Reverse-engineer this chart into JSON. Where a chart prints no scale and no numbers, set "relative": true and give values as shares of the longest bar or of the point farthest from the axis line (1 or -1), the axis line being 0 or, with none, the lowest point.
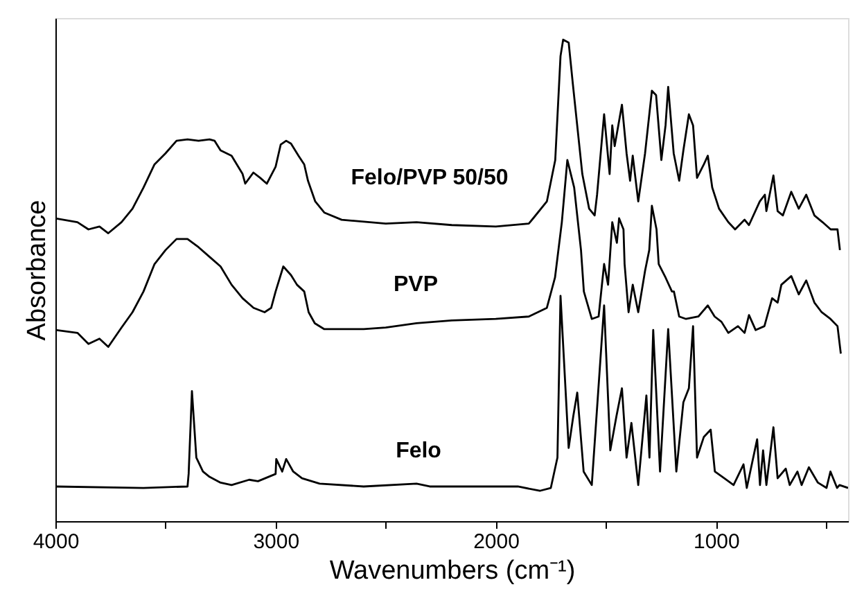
{
  "chart_data": {
    "type": "line",
    "relative": true,
    "xlabel": "Wavenumbers (cm⁻¹)",
    "ylabel": "Absorbance",
    "xlim": [
      4000,
      400
    ],
    "xticks": [
      4000,
      {
        "value": 3500,
        "label": null
      },
      3000,
      {
        "value": 2500,
        "label": null
      },
      2000,
      {
        "value": 1500,
        "label": null
      },
      1000,
      {
        "value": 500,
        "label": null
      }
    ],
    "tick_labels": "x",
    "grid": false,
    "marker": "none",
    "line_style": "solid",
    "series": [
      {
        "name": "Felo/PVP 50/50",
        "color": "#000000",
        "x": [
          4000,
          3900,
          3850,
          3800,
          3760,
          3700,
          3650,
          3600,
          3550,
          3500,
          3450,
          3400,
          3350,
          3300,
          3277,
          3250,
          3200,
          3150,
          3138,
          3101,
          3070,
          3040,
          3000,
          2977,
          2952,
          2930,
          2896,
          2870,
          2853,
          2820,
          2779,
          2700,
          2500,
          2360,
          2200,
          2000,
          1850,
          1830,
          1768,
          1730,
          1706,
          1694,
          1669,
          1650,
          1607,
          1576,
          1551,
          1540,
          1508,
          1483,
          1471,
          1460,
          1427,
          1406,
          1390,
          1378,
          1353,
          1322,
          1291,
          1272,
          1248,
          1229,
          1217,
          1192,
          1167,
          1148,
          1123,
          1104,
          1086,
          1055,
          1037,
          1017,
          986,
          944,
          913,
          870,
          850,
          801,
          778,
          771,
          739,
          720,
          696,
          658,
          624,
          590,
          553,
          516,
          479,
          448,
          437
        ],
        "values": [
          0.629,
          0.621,
          0.606,
          0.612,
          0.598,
          0.621,
          0.649,
          0.693,
          0.741,
          0.764,
          0.79,
          0.793,
          0.79,
          0.793,
          0.79,
          0.77,
          0.759,
          0.721,
          0.701,
          0.724,
          0.713,
          0.701,
          0.736,
          0.782,
          0.79,
          0.784,
          0.759,
          0.741,
          0.707,
          0.664,
          0.641,
          0.626,
          0.618,
          0.621,
          0.615,
          0.612,
          0.618,
          0.629,
          0.664,
          0.75,
          0.966,
          1.0,
          0.994,
          0.908,
          0.721,
          0.649,
          0.635,
          0.678,
          0.845,
          0.721,
          0.822,
          0.779,
          0.865,
          0.764,
          0.707,
          0.759,
          0.664,
          0.764,
          0.894,
          0.885,
          0.75,
          0.822,
          0.902,
          0.764,
          0.707,
          0.77,
          0.845,
          0.822,
          0.713,
          0.741,
          0.759,
          0.693,
          0.649,
          0.621,
          0.606,
          0.626,
          0.615,
          0.664,
          0.678,
          0.644,
          0.718,
          0.644,
          0.635,
          0.684,
          0.649,
          0.678,
          0.635,
          0.621,
          0.606,
          0.606,
          0.563
        ]
      },
      {
        "name": "PVP",
        "color": "#000000",
        "x": [
          4000,
          3900,
          3850,
          3800,
          3760,
          3700,
          3650,
          3600,
          3550,
          3500,
          3450,
          3400,
          3350,
          3300,
          3250,
          3200,
          3150,
          3100,
          3050,
          3020,
          3000,
          2965,
          2930,
          2903,
          2870,
          2850,
          2822,
          2780,
          2600,
          2500,
          2360,
          2200,
          2000,
          1850,
          1768,
          1731,
          1700,
          1675,
          1644,
          1613,
          1600,
          1564,
          1533,
          1508,
          1490,
          1471,
          1450,
          1440,
          1420,
          1415,
          1397,
          1378,
          1353,
          1322,
          1303,
          1291,
          1270,
          1260,
          1229,
          1200,
          1191,
          1167,
          1136,
          1080,
          1037,
          1006,
          975,
          944,
          900,
          870,
          850,
          820,
          780,
          745,
          720,
          703,
          658,
          624,
          590,
          553,
          520,
          480,
          448,
          433
        ],
        "values": [
          0.397,
          0.391,
          0.368,
          0.379,
          0.362,
          0.402,
          0.434,
          0.477,
          0.534,
          0.563,
          0.586,
          0.586,
          0.569,
          0.549,
          0.529,
          0.491,
          0.463,
          0.443,
          0.434,
          0.443,
          0.477,
          0.529,
          0.511,
          0.491,
          0.477,
          0.434,
          0.411,
          0.399,
          0.399,
          0.402,
          0.411,
          0.417,
          0.42,
          0.425,
          0.443,
          0.506,
          0.621,
          0.75,
          0.693,
          0.563,
          0.477,
          0.42,
          0.425,
          0.534,
          0.491,
          0.621,
          0.578,
          0.629,
          0.606,
          0.534,
          0.434,
          0.491,
          0.434,
          0.52,
          0.563,
          0.655,
          0.606,
          0.534,
          0.506,
          0.477,
          0.477,
          0.425,
          0.42,
          0.425,
          0.448,
          0.425,
          0.414,
          0.391,
          0.405,
          0.391,
          0.428,
          0.397,
          0.405,
          0.463,
          0.454,
          0.491,
          0.509,
          0.471,
          0.5,
          0.454,
          0.434,
          0.42,
          0.405,
          0.348
        ]
      },
      {
        "name": "Felo",
        "color": "#000000",
        "x": [
          4000,
          3600,
          3400,
          3395,
          3380,
          3360,
          3330,
          3300,
          3250,
          3200,
          3120,
          3080,
          3000,
          2997,
          2970,
          2952,
          2920,
          2880,
          2800,
          2600,
          2360,
          2300,
          1900,
          1800,
          1750,
          1720,
          1706,
          1669,
          1648,
          1630,
          1601,
          1564,
          1508,
          1480,
          1452,
          1427,
          1406,
          1384,
          1353,
          1316,
          1302,
          1285,
          1254,
          1217,
          1180,
          1148,
          1123,
          1104,
          1086,
          1055,
          1024,
          1005,
          962,
          920,
          875,
          860,
          813,
          800,
          786,
          771,
          739,
          720,
          683,
          665,
          630,
          611,
          578,
          537,
          498,
          480,
          450,
          439,
          400
        ],
        "values": [
          0.072,
          0.069,
          0.072,
          0.098,
          0.27,
          0.132,
          0.103,
          0.092,
          0.08,
          0.075,
          0.086,
          0.083,
          0.098,
          0.129,
          0.103,
          0.129,
          0.103,
          0.089,
          0.078,
          0.072,
          0.078,
          0.072,
          0.072,
          0.063,
          0.069,
          0.132,
          0.468,
          0.152,
          0.218,
          0.267,
          0.103,
          0.075,
          0.448,
          0.147,
          0.218,
          0.276,
          0.132,
          0.204,
          0.075,
          0.261,
          0.132,
          0.397,
          0.103,
          0.399,
          0.103,
          0.247,
          0.276,
          0.405,
          0.132,
          0.175,
          0.19,
          0.103,
          0.089,
          0.075,
          0.118,
          0.069,
          0.17,
          0.075,
          0.147,
          0.075,
          0.195,
          0.089,
          0.109,
          0.075,
          0.103,
          0.075,
          0.112,
          0.08,
          0.069,
          0.103,
          0.069,
          0.075,
          0.069
        ]
      }
    ]
  }
}
